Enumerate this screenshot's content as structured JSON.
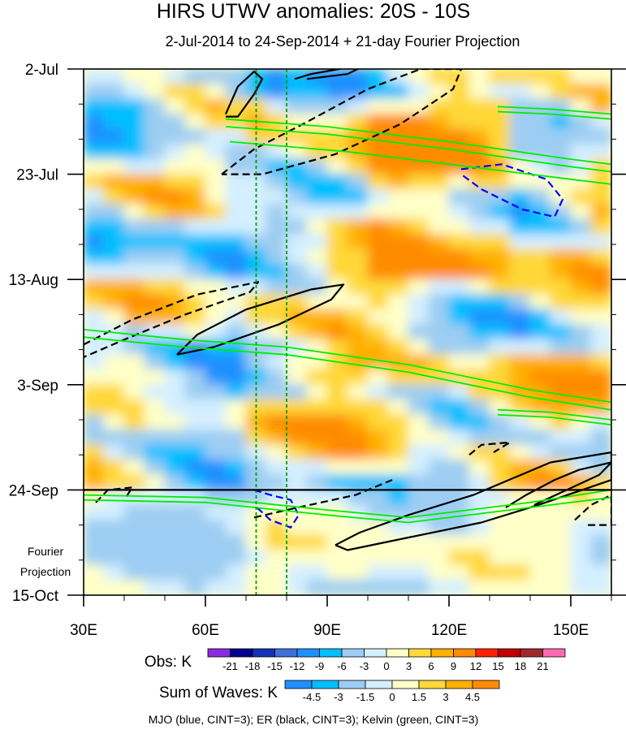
{
  "chart_data": {
    "type": "heatmap",
    "title": "HIRS UTWV anomalies: 20S - 10S",
    "subtitle": "2-Jul-2014 to 24-Sep-2014 + 21-day Fourier Projection",
    "x_axis": {
      "range_deg_east": [
        30,
        160
      ],
      "ticks": [
        30,
        60,
        90,
        120,
        150
      ],
      "tick_labels": [
        "30E",
        "60E",
        "90E",
        "120E",
        "150E"
      ]
    },
    "y_axis": {
      "range_days_from_start": [
        0,
        105
      ],
      "direction": "time increases downward",
      "ticks": [
        0,
        21,
        42,
        63,
        84,
        105
      ],
      "tick_labels": [
        "2-Jul",
        "23-Jul",
        "13-Aug",
        "3-Sep",
        "24-Sep",
        "15-Oct"
      ]
    },
    "observation_end_day": 84,
    "projection_label": [
      "Fourier",
      "Projection"
    ],
    "reference_longitudes": [
      72.5,
      80
    ],
    "obs_colorbar": {
      "label": "Obs: K",
      "levels": [
        -21,
        -18,
        -15,
        -12,
        -9,
        -6,
        -3,
        0,
        3,
        6,
        9,
        12,
        15,
        18,
        21
      ],
      "colors": [
        "#8a2be2",
        "#00008b",
        "#1530b8",
        "#3e6fdd",
        "#1f90ff",
        "#00bfff",
        "#9dcdf2",
        "#d4efff",
        "#ffffc8",
        "#ffd839",
        "#ffb000",
        "#ff8c00",
        "#ff2200",
        "#c00000",
        "#a0282d",
        "#ff69b4"
      ]
    },
    "waves_colorbar": {
      "label": "Sum of Waves: K",
      "levels": [
        -4.5,
        -3,
        -1.5,
        0,
        1.5,
        3,
        4.5
      ],
      "colors": [
        "#1f90ff",
        "#00bfff",
        "#9dcdf2",
        "#d4efff",
        "#ffffc8",
        "#ffd839",
        "#ffb000",
        "#ff8c00"
      ]
    },
    "footer": "MJO (blue, CINT=3); ER (black, CINT=3); Kelvin (green, CINT=3)",
    "contour_legend": [
      {
        "wave": "MJO",
        "color": "#0000ff",
        "cint": 3
      },
      {
        "wave": "ER",
        "color": "#000000",
        "cint": 3
      },
      {
        "wave": "Kelvin",
        "color": "#00ee00",
        "cint": 3
      }
    ],
    "contours": [
      {
        "wave": "MJO",
        "sign": "negative",
        "points": [
          [
            123,
            20
          ],
          [
            133,
            19
          ],
          [
            144,
            22
          ],
          [
            148,
            26
          ],
          [
            146,
            29.5
          ],
          [
            138,
            28
          ],
          [
            128,
            24
          ],
          [
            123,
            21
          ]
        ]
      },
      {
        "wave": "MJO",
        "sign": "negative",
        "points": [
          [
            72,
            84
          ],
          [
            76,
            85
          ],
          [
            81,
            86
          ],
          [
            83,
            89
          ],
          [
            81,
            91.5
          ],
          [
            76,
            90
          ],
          [
            72,
            87
          ]
        ]
      },
      {
        "wave": "ER",
        "sign": "positive",
        "points": [
          [
            65,
            9
          ],
          [
            68,
            3.5
          ],
          [
            72,
            0.5
          ],
          [
            74,
            2
          ],
          [
            72,
            5
          ],
          [
            68,
            9.5
          ],
          [
            65,
            9.5
          ]
        ]
      },
      {
        "wave": "ER",
        "sign": "positive",
        "points": [
          [
            82,
            2
          ],
          [
            86,
            1
          ],
          [
            100,
            -1
          ],
          [
            95,
            1
          ],
          [
            85,
            2
          ]
        ]
      },
      {
        "wave": "ER",
        "sign": "negative",
        "points": [
          [
            64,
            21
          ],
          [
            72,
            16
          ],
          [
            84,
            11
          ],
          [
            100,
            4
          ],
          [
            113,
            0
          ],
          [
            123,
            0
          ],
          [
            121,
            4
          ],
          [
            108,
            11
          ],
          [
            92,
            17
          ],
          [
            74,
            21
          ],
          [
            64,
            21
          ]
        ]
      },
      {
        "wave": "ER",
        "sign": "negative",
        "points": [
          [
            30,
            55
          ],
          [
            42,
            50
          ],
          [
            58,
            45
          ],
          [
            73,
            42.5
          ],
          [
            71,
            44.5
          ],
          [
            55,
            49
          ],
          [
            40,
            54
          ],
          [
            30,
            57.5
          ]
        ]
      },
      {
        "wave": "ER",
        "sign": "positive",
        "points": [
          [
            53,
            57
          ],
          [
            58,
            53
          ],
          [
            70,
            48
          ],
          [
            86,
            44
          ],
          [
            94,
            43
          ],
          [
            91,
            46
          ],
          [
            78,
            51
          ],
          [
            62,
            55.5
          ],
          [
            53,
            57
          ]
        ]
      },
      {
        "wave": "ER",
        "sign": "negative",
        "points": [
          [
            125,
            77
          ],
          [
            128,
            75
          ],
          [
            135,
            74.5
          ],
          [
            131,
            76.5
          ]
        ]
      },
      {
        "wave": "ER",
        "sign": "negative",
        "points": [
          [
            33,
            86.5
          ],
          [
            36,
            84
          ],
          [
            42,
            83.5
          ],
          [
            40,
            86
          ]
        ]
      },
      {
        "wave": "ER",
        "sign": "negative",
        "points": [
          [
            72,
            89.5
          ],
          [
            80,
            88
          ],
          [
            97,
            85
          ],
          [
            106,
            82
          ]
        ]
      },
      {
        "wave": "ER",
        "sign": "positive",
        "points": [
          [
            92,
            95
          ],
          [
            98,
            92.5
          ],
          [
            110,
            89
          ],
          [
            126,
            85
          ],
          [
            145,
            78.5
          ],
          [
            160,
            76.5
          ],
          [
            160,
            82
          ],
          [
            142,
            87
          ],
          [
            128,
            90.5
          ],
          [
            110,
            93.5
          ],
          [
            95,
            96
          ],
          [
            92,
            95
          ]
        ]
      },
      {
        "wave": "ER",
        "sign": "positive",
        "points": [
          [
            134,
            87.5
          ],
          [
            139,
            85
          ],
          [
            146,
            82
          ],
          [
            152,
            80
          ],
          [
            160,
            78.5
          ],
          [
            157,
            81
          ],
          [
            149,
            84
          ],
          [
            141,
            87
          ]
        ]
      },
      {
        "wave": "ER",
        "sign": "negative",
        "points": [
          [
            151,
            90
          ],
          [
            155,
            87
          ],
          [
            160,
            85
          ],
          [
            160,
            91
          ],
          [
            154,
            91
          ]
        ]
      },
      {
        "wave": "Kelvin",
        "sign": "positive",
        "points": [
          [
            30,
            52
          ],
          [
            55,
            54
          ],
          [
            80,
            55.5
          ],
          [
            110,
            59
          ],
          [
            140,
            64
          ],
          [
            160,
            66.5
          ]
        ]
      },
      {
        "wave": "Kelvin",
        "sign": "positive",
        "points": [
          [
            30,
            53.5
          ],
          [
            55,
            55.5
          ],
          [
            80,
            57
          ],
          [
            110,
            60.5
          ],
          [
            140,
            65.5
          ],
          [
            160,
            68
          ]
        ]
      },
      {
        "wave": "Kelvin",
        "sign": "positive",
        "points": [
          [
            65,
            10
          ],
          [
            90,
            11.5
          ],
          [
            120,
            14.5
          ],
          [
            150,
            18
          ],
          [
            160,
            19
          ]
        ]
      },
      {
        "wave": "Kelvin",
        "sign": "positive",
        "points": [
          [
            65,
            11.5
          ],
          [
            90,
            13
          ],
          [
            120,
            16
          ],
          [
            150,
            19.5
          ],
          [
            160,
            20.5
          ]
        ]
      },
      {
        "wave": "Kelvin",
        "sign": "positive",
        "points": [
          [
            66,
            14.5
          ],
          [
            95,
            16.5
          ],
          [
            125,
            19.5
          ],
          [
            150,
            22
          ],
          [
            160,
            23
          ]
        ]
      },
      {
        "wave": "Kelvin",
        "sign": "positive",
        "points": [
          [
            30,
            85
          ],
          [
            60,
            85.5
          ],
          [
            90,
            88
          ],
          [
            110,
            89.5
          ],
          [
            140,
            86.5
          ],
          [
            160,
            84
          ]
        ]
      },
      {
        "wave": "Kelvin",
        "sign": "positive",
        "points": [
          [
            30,
            86
          ],
          [
            60,
            86.5
          ],
          [
            90,
            89
          ],
          [
            110,
            90.5
          ],
          [
            140,
            87.5
          ],
          [
            160,
            85.5
          ]
        ]
      },
      {
        "wave": "Kelvin",
        "sign": "positive",
        "points": [
          [
            132,
            7.5
          ],
          [
            145,
            8
          ],
          [
            160,
            9
          ]
        ]
      },
      {
        "wave": "Kelvin",
        "sign": "positive",
        "points": [
          [
            132,
            8.5
          ],
          [
            145,
            9
          ],
          [
            160,
            10
          ]
        ]
      },
      {
        "wave": "Kelvin",
        "sign": "positive",
        "points": [
          [
            132,
            68
          ],
          [
            145,
            68.5
          ],
          [
            160,
            70
          ]
        ]
      },
      {
        "wave": "Kelvin",
        "sign": "positive",
        "points": [
          [
            132,
            69
          ],
          [
            145,
            69.5
          ],
          [
            160,
            71
          ]
        ]
      }
    ]
  }
}
